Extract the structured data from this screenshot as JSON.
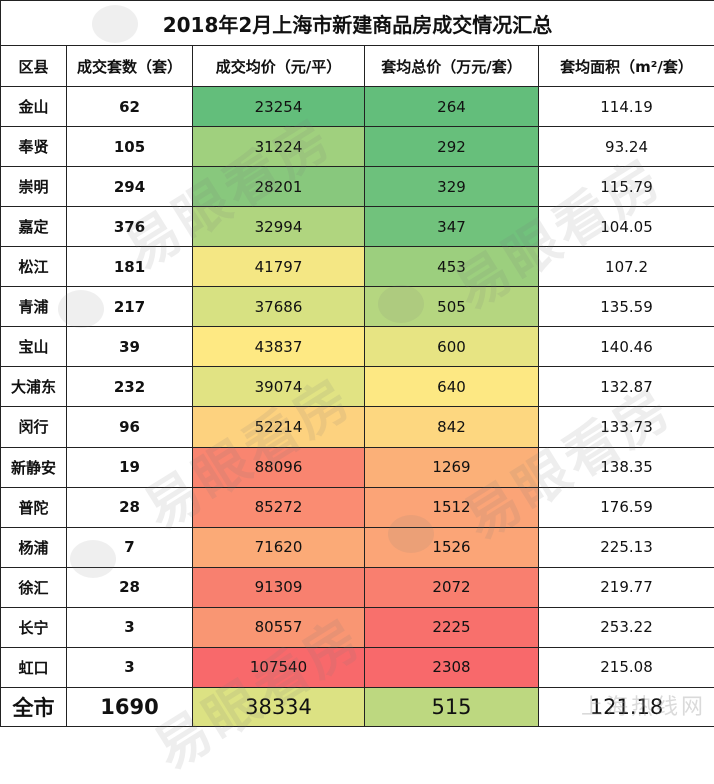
{
  "title": "2018年2月上海市新建商品房成交情况汇总",
  "headers": [
    "区县",
    "成交套数（套）",
    "成交均价（元/平）",
    "套均总价（万元/套）",
    "套均面积（m²/套）"
  ],
  "rows": [
    {
      "district": "金山",
      "units": "62",
      "avg_price": "23254",
      "avg_total": "264",
      "avg_area": "114.19",
      "price_color": "#63be7b",
      "total_color": "#63be7b"
    },
    {
      "district": "奉贤",
      "units": "105",
      "avg_price": "31224",
      "avg_total": "292",
      "avg_area": "93.24",
      "price_color": "#a0d07e",
      "total_color": "#67bf7b"
    },
    {
      "district": "崇明",
      "units": "294",
      "avg_price": "28201",
      "avg_total": "329",
      "avg_area": "115.79",
      "price_color": "#88c87d",
      "total_color": "#6dc17c"
    },
    {
      "district": "嘉定",
      "units": "376",
      "avg_price": "32994",
      "avg_total": "347",
      "avg_area": "104.05",
      "price_color": "#b0d57f",
      "total_color": "#71c27c"
    },
    {
      "district": "松江",
      "units": "181",
      "avg_price": "41797",
      "avg_total": "453",
      "avg_area": "107.2",
      "price_color": "#f4e784",
      "total_color": "#9ccf7e"
    },
    {
      "district": "青浦",
      "units": "217",
      "avg_price": "37686",
      "avg_total": "505",
      "avg_area": "135.59",
      "price_color": "#d7e182",
      "total_color": "#b5d680"
    },
    {
      "district": "宝山",
      "units": "39",
      "avg_price": "43837",
      "avg_total": "600",
      "avg_area": "140.46",
      "price_color": "#fee983",
      "total_color": "#e7e483"
    },
    {
      "district": "大浦东",
      "units": "232",
      "avg_price": "39074",
      "avg_total": "640",
      "avg_area": "132.87",
      "price_color": "#e1e383",
      "total_color": "#fde883"
    },
    {
      "district": "闵行",
      "units": "96",
      "avg_price": "52214",
      "avg_total": "842",
      "avg_area": "133.73",
      "price_color": "#fdd27f",
      "total_color": "#fdd780"
    },
    {
      "district": "新静安",
      "units": "19",
      "avg_price": "88096",
      "avg_total": "1269",
      "avg_area": "138.35",
      "price_color": "#f98570",
      "total_color": "#fbb078"
    },
    {
      "district": "普陀",
      "units": "28",
      "avg_price": "85272",
      "avg_total": "1512",
      "avg_area": "176.59",
      "price_color": "#fa8c72",
      "total_color": "#fba477"
    },
    {
      "district": "杨浦",
      "units": "7",
      "avg_price": "71620",
      "avg_total": "1526",
      "avg_area": "225.13",
      "price_color": "#fbaa77",
      "total_color": "#fba577"
    },
    {
      "district": "徐汇",
      "units": "28",
      "avg_price": "91309",
      "avg_total": "2072",
      "avg_area": "219.77",
      "price_color": "#f8806f",
      "total_color": "#f97f6f"
    },
    {
      "district": "长宁",
      "units": "3",
      "avg_price": "80557",
      "avg_total": "2225",
      "avg_area": "253.22",
      "price_color": "#f99673",
      "total_color": "#f8706c"
    },
    {
      "district": "虹口",
      "units": "3",
      "avg_price": "107540",
      "avg_total": "2308",
      "avg_area": "215.08",
      "price_color": "#f8696b",
      "total_color": "#f8696b"
    }
  ],
  "total": {
    "district": "全市",
    "units": "1690",
    "avg_price": "38334",
    "avg_total": "515",
    "avg_area": "121.18",
    "price_color": "#dce283",
    "total_color": "#bdd880"
  },
  "watermark_text": "易眼看房",
  "site_mark": "上海热线网"
}
